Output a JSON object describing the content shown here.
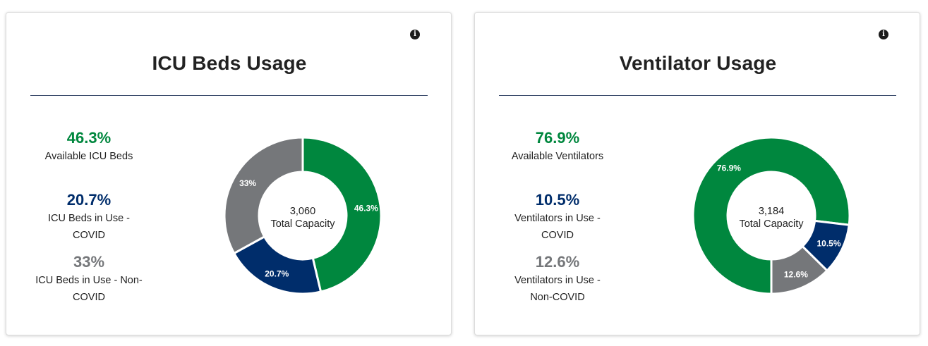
{
  "colors": {
    "available": "#00873e",
    "covid": "#002d6b",
    "noncovid": "#75777a"
  },
  "icu": {
    "title": "ICU Beds Usage",
    "info_icon": "info-icon",
    "stats": [
      {
        "value": "46.3%",
        "label": "Available ICU Beds",
        "color": "#00873e"
      },
      {
        "value": "20.7%",
        "label": "ICU Beds in Use - COVID",
        "color": "#002d6b"
      },
      {
        "value": "33%",
        "label": "ICU Beds in Use - Non-COVID",
        "color": "#75777a"
      }
    ],
    "center_value": "3,060",
    "center_label": "Total Capacity"
  },
  "vent": {
    "title": "Ventilator Usage",
    "info_icon": "info-icon",
    "stats": [
      {
        "value": "76.9%",
        "label": "Available Ventilators",
        "color": "#00873e"
      },
      {
        "value": "10.5%",
        "label": "Ventilators in Use - COVID",
        "color": "#002d6b"
      },
      {
        "value": "12.6%",
        "label": "Ventilators in Use - Non-COVID",
        "color": "#75777a"
      }
    ],
    "center_value": "3,184",
    "center_label": "Total Capacity"
  },
  "chart_data": [
    {
      "type": "pie",
      "variant": "donut",
      "title": "ICU Beds Usage",
      "categories": [
        "Available ICU Beds",
        "ICU Beds in Use - COVID",
        "ICU Beds in Use - Non-COVID"
      ],
      "values": [
        46.3,
        20.7,
        33
      ],
      "data_labels": [
        "46.3%",
        "20.7%",
        "33%"
      ],
      "colors": [
        "#00873e",
        "#002d6b",
        "#75777a"
      ],
      "center_value": "3,060",
      "center_label": "Total Capacity",
      "start_angle_deg": -90
    },
    {
      "type": "pie",
      "variant": "donut",
      "title": "Ventilator Usage",
      "categories": [
        "Available Ventilators",
        "Ventilators in Use - COVID",
        "Ventilators in Use - Non-COVID"
      ],
      "values": [
        76.9,
        10.5,
        12.6
      ],
      "data_labels": [
        "76.9%",
        "10.5%",
        "12.6%"
      ],
      "colors": [
        "#00873e",
        "#002d6b",
        "#75777a"
      ],
      "center_value": "3,184",
      "center_label": "Total Capacity",
      "start_angle_deg": 90
    }
  ]
}
